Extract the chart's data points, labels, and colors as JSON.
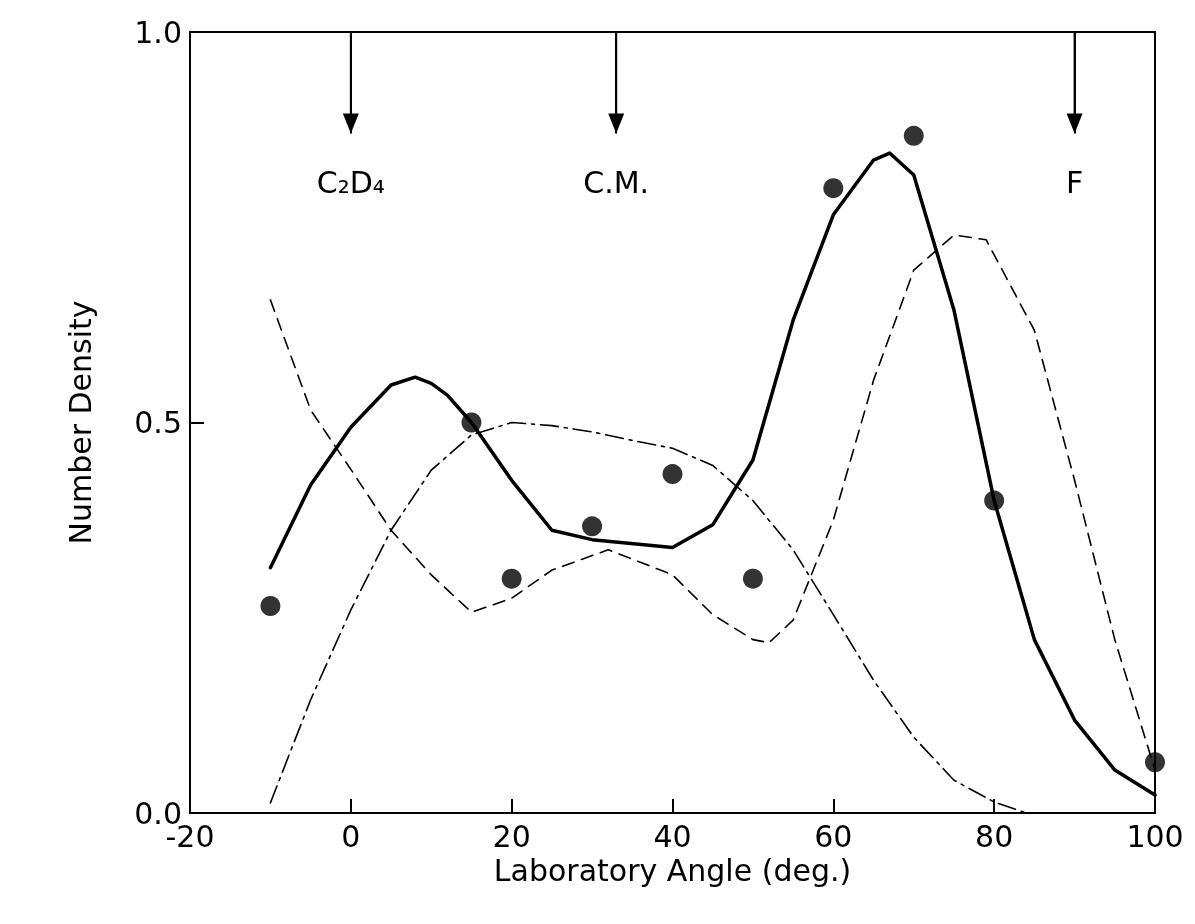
{
  "chart_data": {
    "type": "line",
    "xlabel": "Laboratory Angle (deg.)",
    "ylabel": "Number Density",
    "xlim": [
      -20,
      100
    ],
    "xticks": [
      -20,
      0,
      20,
      40,
      60,
      80,
      100
    ],
    "ylim": [
      0,
      1
    ],
    "yticks": [
      {
        "value": 0,
        "label": "0.0"
      },
      {
        "value": 0.5,
        "label": "0.5"
      },
      {
        "value": 1,
        "label": "1.0"
      }
    ],
    "grid": false,
    "ref_lines": [
      {
        "axis": "x",
        "value": 0,
        "label": "C₂D₄"
      },
      {
        "axis": "x",
        "value": 33,
        "label": "C.M."
      },
      {
        "axis": "x",
        "value": 90,
        "label": "F"
      }
    ],
    "series": [
      {
        "type": "scatter",
        "color": "#000000",
        "marker": "circle",
        "x": [
          -10,
          15,
          20,
          30,
          40,
          50,
          60,
          70,
          80,
          100
        ],
        "values": [
          0.265,
          0.5,
          0.3,
          0.367,
          0.434,
          0.3,
          0.8,
          0.867,
          0.4,
          0.065
        ]
      },
      {
        "color": "#000000",
        "line_style": "solid",
        "marker": "none",
        "x": [
          -10,
          -5,
          0,
          5,
          8,
          10,
          12,
          15,
          20,
          25,
          30,
          40,
          45,
          50,
          55,
          60,
          65,
          67,
          70,
          75,
          80,
          85,
          90,
          95,
          100
        ],
        "values": [
          0.314,
          0.42,
          0.494,
          0.548,
          0.558,
          0.55,
          0.535,
          0.5,
          0.426,
          0.362,
          0.35,
          0.34,
          0.369,
          0.452,
          0.631,
          0.766,
          0.836,
          0.845,
          0.817,
          0.644,
          0.4,
          0.222,
          0.119,
          0.055,
          0.023
        ]
      },
      {
        "color": "#000000",
        "line_style": "dashed",
        "marker": "none",
        "x": [
          -10,
          -5,
          0,
          5,
          10,
          15,
          20,
          25,
          32,
          40,
          45,
          50,
          52,
          55,
          60,
          65,
          70,
          75,
          79,
          85,
          90,
          95,
          100
        ],
        "values": [
          0.657,
          0.516,
          0.44,
          0.362,
          0.305,
          0.257,
          0.275,
          0.311,
          0.337,
          0.305,
          0.254,
          0.222,
          0.218,
          0.247,
          0.375,
          0.554,
          0.695,
          0.74,
          0.734,
          0.618,
          0.426,
          0.222,
          0.055
        ]
      },
      {
        "color": "#000000",
        "line_style": "dashdot",
        "marker": "none",
        "x": [
          -10,
          -5,
          0,
          5,
          10,
          15,
          20,
          25,
          30,
          35,
          40,
          45,
          50,
          55,
          60,
          65,
          70,
          75,
          80,
          84
        ],
        "values": [
          0.013,
          0.145,
          0.26,
          0.362,
          0.439,
          0.484,
          0.5,
          0.496,
          0.488,
          0.477,
          0.467,
          0.445,
          0.4,
          0.337,
          0.254,
          0.17,
          0.097,
          0.042,
          0.014,
          0
        ]
      }
    ]
  }
}
